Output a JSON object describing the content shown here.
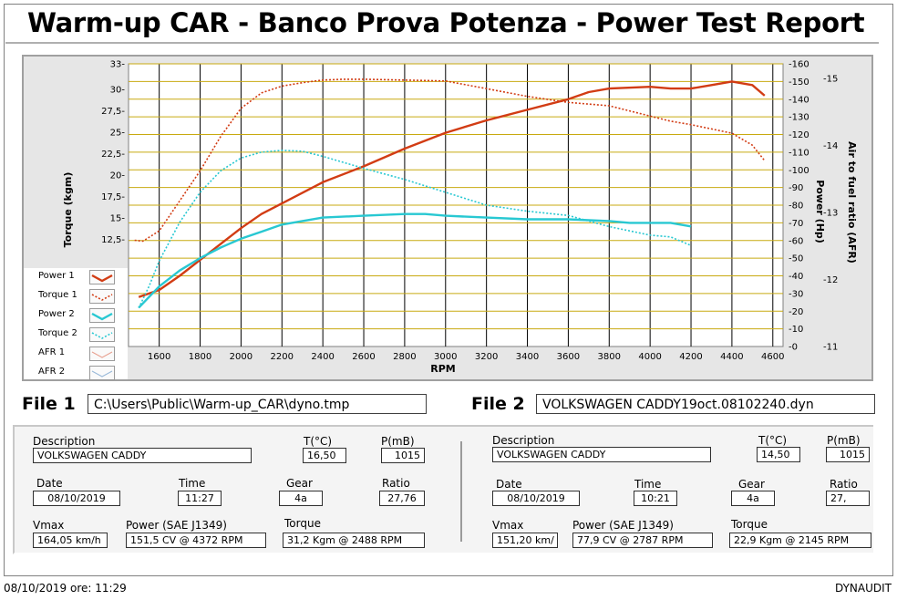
{
  "report": {
    "title": "Warm-up CAR  - Banco Prova Potenza -  Power Test Report",
    "footer_datetime": "08/10/2019  ore: 11:29",
    "footer_brand": "DYNAUDIT"
  },
  "chart_data": {
    "type": "line",
    "xlabel": "RPM",
    "ylabel_left": "Torque (kgm)",
    "ylabel_right1": "Power (Hp)",
    "ylabel_right2": "Air to fuel ratio (AFR)",
    "x_ticks": [
      "1600",
      "1800",
      "2000",
      "2200",
      "2400",
      "2600",
      "2800",
      "3000",
      "3200",
      "3400",
      "3600",
      "3800",
      "4000",
      "4200",
      "4400",
      "4600"
    ],
    "y_left_ticks": [
      "33",
      "30",
      "27,5",
      "25",
      "22,5",
      "20",
      "17,5",
      "15",
      "12,5"
    ],
    "y_power_ticks": [
      "160",
      "150",
      "140",
      "130",
      "120",
      "110",
      "100",
      "90",
      "80",
      "70",
      "60",
      "50",
      "40",
      "30",
      "20",
      "10",
      "0"
    ],
    "y_afr_ticks": [
      "15",
      "14",
      "13",
      "12",
      "11"
    ],
    "xlim": [
      1450,
      4650
    ],
    "ylim_power": [
      0,
      160
    ],
    "ylim_torque": [
      0,
      33
    ],
    "grid": true,
    "legend": [
      "Power 1",
      "Torque 1",
      "Power 2",
      "Torque 2",
      "AFR 1",
      "AFR 2"
    ],
    "series": [
      {
        "name": "Power 1",
        "axis": "power",
        "color": "#d23c14",
        "dash": "",
        "x": [
          1500,
          1600,
          1700,
          1800,
          1900,
          2000,
          2100,
          2200,
          2400,
          2600,
          2800,
          3000,
          3200,
          3400,
          3600,
          3700,
          3800,
          4000,
          4100,
          4200,
          4300,
          4400,
          4500,
          4560
        ],
        "y": [
          28,
          32,
          40,
          49,
          58,
          67,
          75,
          81,
          93,
          102,
          112,
          121,
          128,
          134,
          140,
          144,
          146,
          147,
          146,
          146,
          148,
          150,
          148,
          142
        ]
      },
      {
        "name": "Torque 1",
        "axis": "torque",
        "color": "#d23c14",
        "dash": "2 2",
        "x": [
          1480,
          1520,
          1600,
          1700,
          1800,
          1900,
          2000,
          2100,
          2200,
          2300,
          2400,
          2500,
          2600,
          2800,
          3000,
          3200,
          3400,
          3600,
          3800,
          4000,
          4100,
          4200,
          4300,
          4400,
          4500,
          4560
        ],
        "y": [
          12.4,
          12.3,
          13.5,
          17,
          20.5,
          24.5,
          27.8,
          29.6,
          30.4,
          30.8,
          31.1,
          31.2,
          31.2,
          31.1,
          31,
          30.1,
          29.2,
          28.5,
          28.1,
          26.9,
          26.3,
          25.9,
          25.4,
          24.9,
          23.5,
          21.7
        ]
      },
      {
        "name": "Power 2",
        "axis": "power",
        "color": "#28c8d2",
        "dash": "",
        "x": [
          1500,
          1600,
          1700,
          1800,
          1900,
          2000,
          2100,
          2200,
          2400,
          2600,
          2800,
          2900,
          3000,
          3200,
          3400,
          3600,
          3800,
          3900,
          4000,
          4100,
          4200
        ],
        "y": [
          22,
          34,
          43,
          50,
          56,
          61,
          65,
          69,
          73,
          74,
          75,
          75,
          74,
          73,
          72,
          72,
          71,
          70,
          70,
          70,
          68
        ]
      },
      {
        "name": "Torque 2",
        "axis": "torque",
        "color": "#28c8d2",
        "dash": "2 2",
        "x": [
          1500,
          1550,
          1600,
          1700,
          1800,
          1900,
          2000,
          2100,
          2200,
          2300,
          2400,
          2600,
          2800,
          3000,
          3200,
          3400,
          3600,
          3800,
          4000,
          4100,
          4200
        ],
        "y": [
          4.5,
          7,
          10,
          14.5,
          18,
          20.5,
          22,
          22.7,
          22.9,
          22.8,
          22.2,
          20.8,
          19.5,
          18,
          16.5,
          15.8,
          15.3,
          14,
          13,
          12.8,
          11.8
        ]
      },
      {
        "name": "AFR 1",
        "axis": "afr",
        "color": "#d23c14",
        "dash": "",
        "x": [],
        "y": []
      },
      {
        "name": "AFR 2",
        "axis": "afr",
        "color": "#28c8d2",
        "dash": "",
        "x": [],
        "y": []
      }
    ]
  },
  "file1": {
    "label": "File 1",
    "path": "C:\\Users\\Public\\Warm-up_CAR\\dyno.tmp",
    "description_label": "Description",
    "description": "VOLKSWAGEN CADDY",
    "t_label": "T(°C)",
    "t_value": "16,50",
    "p_label": "P(mB)",
    "p_value": "1015",
    "date_label": "Date",
    "date_value": "08/10/2019",
    "time_label": "Time",
    "time_value": "11:27",
    "gear_label": "Gear",
    "gear_value": "4a",
    "ratio_label": "Ratio",
    "ratio_value": "27,76",
    "vmax_label": "Vmax",
    "vmax_value": "164,05 km/h",
    "power_label": "Power (SAE J1349)",
    "power_value": "151,5 CV  @ 4372  RPM",
    "torque_label": "Torque",
    "torque_value": "31,2 Kgm  @ 2488  RPM"
  },
  "file2": {
    "label": "File 2",
    "path": "VOLKSWAGEN CADDY19oct.08102240.dyn",
    "description_label": "Description",
    "description": "VOLKSWAGEN CADDY",
    "t_label": "T(°C)",
    "t_value": "14,50",
    "p_label": "P(mB)",
    "p_value": "1015",
    "date_label": "Date",
    "date_value": "08/10/2019",
    "time_label": "Time",
    "time_value": "10:21",
    "gear_label": "Gear",
    "gear_value": "4a",
    "ratio_label": "Ratio",
    "ratio_value": "27,",
    "vmax_label": "Vmax",
    "vmax_value": "151,20 km/",
    "power_label": "Power (SAE J1349)",
    "power_value": "77,9 CV  @ 2787  RPM",
    "torque_label": "Torque",
    "torque_value": "22,9 Kgm  @ 2145  RPM"
  }
}
